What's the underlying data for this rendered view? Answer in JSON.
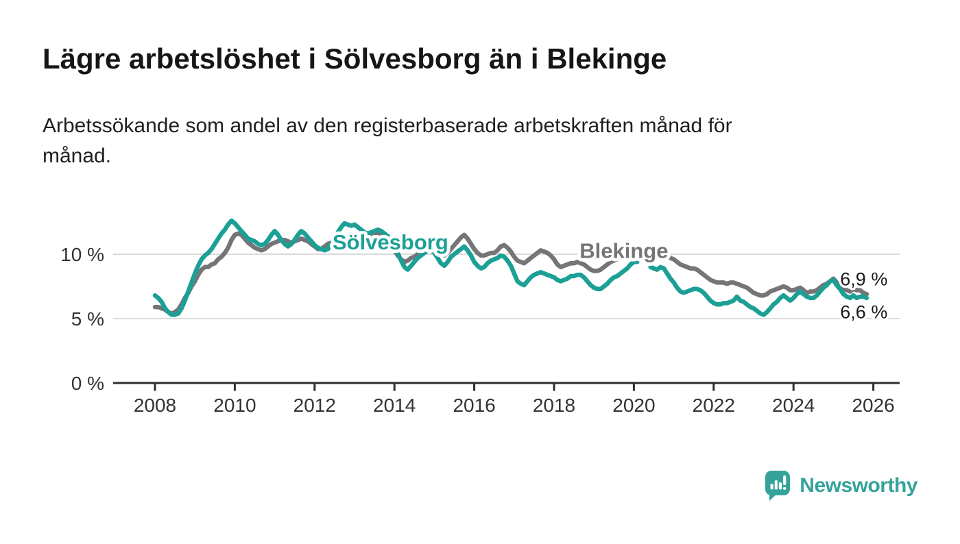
{
  "header": {
    "title": "Lägre arbetslöshet i Sölvesborg än i Blekinge",
    "subtitle": "Arbetssökande som andel av den registerbaserade arbetskraften månad för\nmånad."
  },
  "footer": {
    "brand": "Newsworthy",
    "brand_color": "#35A39A",
    "logo_icon": "newsworthy-speech-bubble-bar-chart-icon"
  },
  "colors": {
    "background": "#ffffff",
    "grid": "#dadada",
    "axis": "#2e2e2e",
    "axis_text": "#333333",
    "annotation_text": "#1a1a1a",
    "solvesborg": "#1CA096",
    "blekinge": "#757578"
  },
  "chart_data": {
    "type": "line",
    "title": "Lägre arbetslöshet i Sölvesborg än i Blekinge",
    "subtitle": "Arbetssökande som andel av den registerbaserade arbetskraften månad för månad.",
    "unit": "%",
    "grid": true,
    "legend_position": "inline-labels",
    "x_axis": {
      "ticks": [
        2008,
        2010,
        2012,
        2014,
        2016,
        2018,
        2020,
        2022,
        2024,
        2026
      ],
      "range": [
        2007.9,
        2026.6
      ]
    },
    "y_axis": {
      "ticks": [
        {
          "value": 0,
          "label": "0 %"
        },
        {
          "value": 5,
          "label": "5 %"
        },
        {
          "value": 10,
          "label": "10 %"
        }
      ],
      "range": [
        0,
        13.3
      ]
    },
    "data_gap_months": [
      "2020-03",
      "2020-04",
      "2020-05"
    ],
    "series": [
      {
        "name": "Blekinge",
        "color": "#757578",
        "label_position": {
          "t": 2019.75,
          "v": 10.3
        },
        "last_value_label": "6,9 %",
        "start_year": 2008,
        "monthly_values": [
          5.9,
          5.9,
          5.8,
          5.7,
          5.5,
          5.4,
          5.5,
          5.7,
          6.1,
          6.6,
          7.0,
          7.5,
          7.9,
          8.4,
          8.8,
          9.0,
          9.0,
          9.2,
          9.3,
          9.6,
          9.8,
          10.1,
          10.5,
          11.1,
          11.5,
          11.6,
          11.5,
          11.2,
          10.9,
          10.7,
          10.5,
          10.4,
          10.3,
          10.4,
          10.6,
          10.8,
          10.9,
          11.0,
          11.1,
          11.1,
          11.0,
          10.9,
          11.0,
          11.1,
          11.2,
          11.1,
          11.0,
          10.8,
          10.6,
          10.4,
          10.4,
          10.6,
          10.8,
          10.9,
          11.0,
          11.2,
          11.3,
          11.2,
          11.1,
          11.2,
          11.3,
          11.3,
          11.2,
          11.3,
          11.4,
          11.5,
          11.6,
          11.7,
          11.5,
          11.3,
          11.0,
          10.6,
          10.3,
          9.9,
          9.6,
          9.4,
          9.5,
          9.7,
          9.8,
          10.0,
          10.1,
          10.2,
          10.4,
          10.4,
          10.3,
          10.1,
          10.0,
          9.9,
          10.1,
          10.4,
          10.7,
          11.0,
          11.3,
          11.5,
          11.2,
          10.8,
          10.4,
          10.1,
          9.9,
          9.9,
          10.0,
          10.1,
          10.1,
          10.3,
          10.6,
          10.7,
          10.5,
          10.2,
          9.8,
          9.5,
          9.4,
          9.3,
          9.5,
          9.7,
          9.9,
          10.1,
          10.3,
          10.2,
          10.1,
          9.9,
          9.6,
          9.2,
          9.0,
          9.1,
          9.2,
          9.3,
          9.3,
          9.4,
          9.3,
          9.2,
          9.0,
          8.8,
          8.7,
          8.7,
          8.8,
          9.0,
          9.2,
          9.4,
          9.5,
          9.6,
          9.7,
          9.8,
          9.9,
          10.0,
          10.1,
          10.2,
          null,
          null,
          null,
          10.4,
          10.3,
          10.3,
          10.2,
          10.1,
          10.0,
          9.7,
          9.6,
          9.4,
          9.2,
          9.1,
          9.0,
          8.9,
          8.9,
          8.8,
          8.6,
          8.4,
          8.2,
          8.0,
          7.9,
          7.8,
          7.8,
          7.8,
          7.7,
          7.8,
          7.8,
          7.7,
          7.6,
          7.5,
          7.4,
          7.2,
          7.0,
          6.9,
          6.8,
          6.8,
          6.9,
          7.1,
          7.2,
          7.3,
          7.4,
          7.5,
          7.4,
          7.2,
          7.2,
          7.3,
          7.4,
          7.2,
          7.0,
          7.1,
          7.1,
          7.2,
          7.4,
          7.6,
          7.7,
          7.9,
          8.1,
          7.8,
          7.6,
          7.3,
          7.2,
          7.1,
          7.3,
          7.2,
          7.2,
          7.0,
          6.9
        ]
      },
      {
        "name": "Sölvesborg",
        "color": "#1CA096",
        "label_position": {
          "t": 2013.9,
          "v": 10.95
        },
        "last_value_label": "6,6 %",
        "start_year": 2008,
        "monthly_values": [
          6.8,
          6.6,
          6.3,
          5.8,
          5.5,
          5.3,
          5.3,
          5.4,
          5.8,
          6.4,
          7.1,
          7.8,
          8.5,
          9.1,
          9.6,
          9.9,
          10.1,
          10.4,
          10.8,
          11.2,
          11.6,
          11.9,
          12.3,
          12.6,
          12.4,
          12.1,
          11.8,
          11.5,
          11.2,
          11.1,
          11.0,
          10.8,
          10.7,
          10.8,
          11.1,
          11.5,
          11.8,
          11.5,
          11.1,
          10.8,
          10.6,
          10.8,
          11.1,
          11.5,
          11.8,
          11.6,
          11.3,
          11.0,
          10.7,
          10.5,
          10.4,
          10.3,
          10.4,
          10.8,
          11.2,
          11.7,
          12.1,
          12.4,
          12.3,
          12.2,
          12.3,
          12.1,
          11.9,
          11.7,
          11.6,
          11.7,
          11.8,
          11.9,
          11.8,
          11.6,
          11.4,
          11.1,
          10.7,
          10.1,
          9.5,
          9.0,
          8.8,
          9.1,
          9.4,
          9.7,
          9.9,
          10.1,
          10.3,
          10.3,
          10.1,
          9.7,
          9.3,
          9.1,
          9.4,
          9.8,
          10.0,
          10.2,
          10.4,
          10.6,
          10.3,
          9.9,
          9.4,
          9.1,
          8.9,
          9.0,
          9.3,
          9.5,
          9.6,
          9.7,
          9.9,
          9.8,
          9.5,
          9.1,
          8.5,
          7.9,
          7.7,
          7.6,
          7.9,
          8.2,
          8.4,
          8.5,
          8.6,
          8.5,
          8.4,
          8.3,
          8.2,
          8.0,
          7.9,
          8.0,
          8.1,
          8.3,
          8.3,
          8.4,
          8.4,
          8.2,
          7.9,
          7.6,
          7.4,
          7.3,
          7.3,
          7.5,
          7.7,
          8.0,
          8.2,
          8.3,
          8.5,
          8.7,
          8.9,
          9.2,
          9.4,
          9.4,
          null,
          null,
          null,
          9.0,
          8.9,
          8.8,
          9.0,
          8.9,
          8.5,
          8.1,
          7.8,
          7.4,
          7.1,
          7.0,
          7.1,
          7.2,
          7.3,
          7.3,
          7.2,
          7.0,
          6.7,
          6.4,
          6.2,
          6.1,
          6.1,
          6.2,
          6.2,
          6.3,
          6.4,
          6.7,
          6.4,
          6.3,
          6.1,
          5.9,
          5.8,
          5.6,
          5.4,
          5.3,
          5.5,
          5.8,
          6.1,
          6.3,
          6.6,
          6.8,
          6.6,
          6.4,
          6.6,
          6.9,
          7.1,
          6.9,
          6.7,
          6.6,
          6.6,
          6.8,
          7.1,
          7.4,
          7.6,
          7.9,
          8.0,
          7.6,
          7.3,
          6.9,
          6.7,
          6.6,
          6.8,
          6.6,
          6.7,
          6.7,
          6.6
        ]
      }
    ],
    "annotations": [
      {
        "text": "6,9 %",
        "series": "Blekinge",
        "t": 2025.17,
        "v": 8.05
      },
      {
        "text": "6,6 %",
        "series": "Sölvesborg",
        "t": 2025.17,
        "v": 5.5
      }
    ]
  }
}
